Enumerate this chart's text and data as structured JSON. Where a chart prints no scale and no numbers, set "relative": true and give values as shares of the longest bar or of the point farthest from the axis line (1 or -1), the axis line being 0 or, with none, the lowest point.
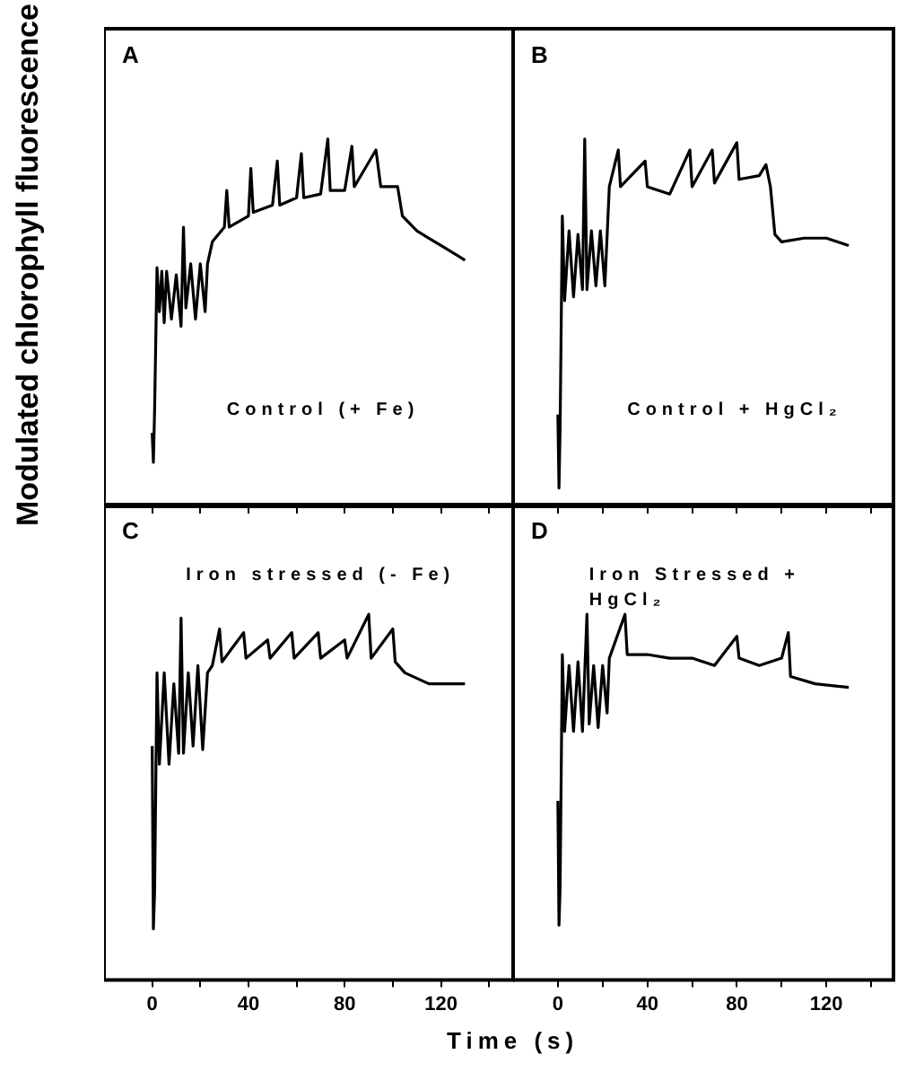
{
  "chart_data": [
    {
      "type": "line",
      "relative": true,
      "ylabel": "Modulated chlorophyll fluorescence",
      "annotations": [
        "A",
        "Control (+ Fe)"
      ],
      "xlim": [
        -20,
        150
      ],
      "xticks": [
        0,
        {
          "value": 20,
          "label": null
        },
        40,
        {
          "value": 60,
          "label": null
        },
        80,
        {
          "value": 100,
          "label": null
        },
        120,
        {
          "value": 140,
          "label": null
        }
      ],
      "tick_labels": false,
      "grid": false,
      "legend": false,
      "marker": "none",
      "line_style": "solid",
      "series": [
        {
          "color": "#000000",
          "x": [
            0,
            0.5,
            1,
            2,
            3,
            4,
            5,
            6,
            8,
            10,
            12,
            13,
            14,
            16,
            18,
            20,
            22,
            23,
            25,
            30,
            31,
            32,
            40,
            41,
            42,
            50,
            52,
            53,
            60,
            62,
            63,
            70,
            73,
            74,
            80,
            83,
            84,
            93,
            95,
            102,
            104,
            110,
            115,
            120,
            130
          ],
          "values": [
            0.2,
            0.12,
            0.26,
            0.65,
            0.53,
            0.64,
            0.5,
            0.64,
            0.51,
            0.63,
            0.49,
            0.76,
            0.54,
            0.66,
            0.51,
            0.66,
            0.53,
            0.66,
            0.72,
            0.76,
            0.86,
            0.76,
            0.79,
            0.92,
            0.8,
            0.82,
            0.94,
            0.82,
            0.84,
            0.96,
            0.84,
            0.85,
            1,
            0.86,
            0.86,
            0.98,
            0.87,
            0.97,
            0.87,
            0.87,
            0.79,
            0.75,
            0.73,
            0.71,
            0.67
          ]
        }
      ]
    },
    {
      "type": "line",
      "relative": true,
      "annotations": [
        "B",
        "Control + HgCl₂"
      ],
      "xlim": [
        -20,
        150
      ],
      "xticks": [
        0,
        {
          "value": 20,
          "label": null
        },
        40,
        {
          "value": 60,
          "label": null
        },
        80,
        {
          "value": 100,
          "label": null
        },
        120,
        {
          "value": 140,
          "label": null
        }
      ],
      "tick_labels": false,
      "grid": false,
      "legend": false,
      "marker": "none",
      "line_style": "solid",
      "series": [
        {
          "color": "#000000",
          "x": [
            0,
            0.5,
            1,
            2,
            3,
            5,
            7,
            9,
            11,
            12,
            13,
            15,
            17,
            19,
            21,
            23,
            27,
            28,
            39,
            40,
            50,
            59,
            60,
            69,
            70,
            80,
            81,
            90,
            93,
            95,
            97,
            100,
            110,
            120,
            130
          ],
          "values": [
            0.25,
            0.05,
            0.21,
            0.79,
            0.56,
            0.75,
            0.57,
            0.74,
            0.59,
            1,
            0.59,
            0.75,
            0.6,
            0.75,
            0.6,
            0.87,
            0.97,
            0.87,
            0.94,
            0.87,
            0.85,
            0.97,
            0.87,
            0.97,
            0.88,
            0.99,
            0.89,
            0.9,
            0.93,
            0.87,
            0.74,
            0.72,
            0.73,
            0.73,
            0.71
          ]
        }
      ]
    },
    {
      "type": "line",
      "relative": true,
      "xlabel": "Time (s)",
      "annotations": [
        "C",
        "Iron stressed (- Fe)"
      ],
      "xlim": [
        -20,
        150
      ],
      "xticks": [
        0,
        {
          "value": 20,
          "label": null
        },
        40,
        {
          "value": 60,
          "label": null
        },
        80,
        {
          "value": 100,
          "label": null
        },
        120,
        {
          "value": 140,
          "label": null
        }
      ],
      "tick_labels": "x",
      "grid": false,
      "legend": false,
      "marker": "none",
      "line_style": "solid",
      "series": [
        {
          "color": "#000000",
          "x": [
            0,
            0.5,
            1,
            2,
            3,
            5,
            7,
            9,
            11,
            12,
            13,
            15,
            17,
            19,
            21,
            23,
            25,
            28,
            29,
            38,
            39,
            48,
            49,
            58,
            59,
            69,
            70,
            80,
            81,
            90,
            91,
            100,
            101,
            105,
            115,
            130
          ],
          "values": [
            0.64,
            0.14,
            0.24,
            0.84,
            0.59,
            0.84,
            0.59,
            0.81,
            0.62,
            0.99,
            0.62,
            0.84,
            0.64,
            0.86,
            0.63,
            0.84,
            0.86,
            0.96,
            0.87,
            0.95,
            0.88,
            0.93,
            0.88,
            0.95,
            0.88,
            0.95,
            0.88,
            0.93,
            0.88,
            1,
            0.88,
            0.96,
            0.87,
            0.84,
            0.81,
            0.81
          ]
        }
      ]
    },
    {
      "type": "line",
      "relative": true,
      "annotations": [
        "D",
        "Iron Stressed + HgCl₂"
      ],
      "xlim": [
        -20,
        150
      ],
      "xticks": [
        0,
        {
          "value": 20,
          "label": null
        },
        40,
        {
          "value": 60,
          "label": null
        },
        80,
        {
          "value": 100,
          "label": null
        },
        120,
        {
          "value": 140,
          "label": null
        }
      ],
      "tick_labels": "x",
      "grid": false,
      "legend": false,
      "marker": "none",
      "line_style": "solid",
      "series": [
        {
          "color": "#000000",
          "x": [
            0,
            0.5,
            1,
            2,
            3,
            5,
            7,
            9,
            11,
            13,
            14,
            16,
            18,
            20,
            22,
            23,
            30,
            31,
            40,
            50,
            60,
            70,
            80,
            81,
            90,
            100,
            103,
            104,
            115,
            130
          ],
          "values": [
            0.49,
            0.15,
            0.25,
            0.89,
            0.68,
            0.86,
            0.68,
            0.87,
            0.68,
            1,
            0.7,
            0.86,
            0.69,
            0.86,
            0.73,
            0.88,
            1,
            0.89,
            0.89,
            0.88,
            0.88,
            0.86,
            0.94,
            0.88,
            0.86,
            0.88,
            0.95,
            0.83,
            0.81,
            0.8
          ]
        }
      ]
    }
  ]
}
